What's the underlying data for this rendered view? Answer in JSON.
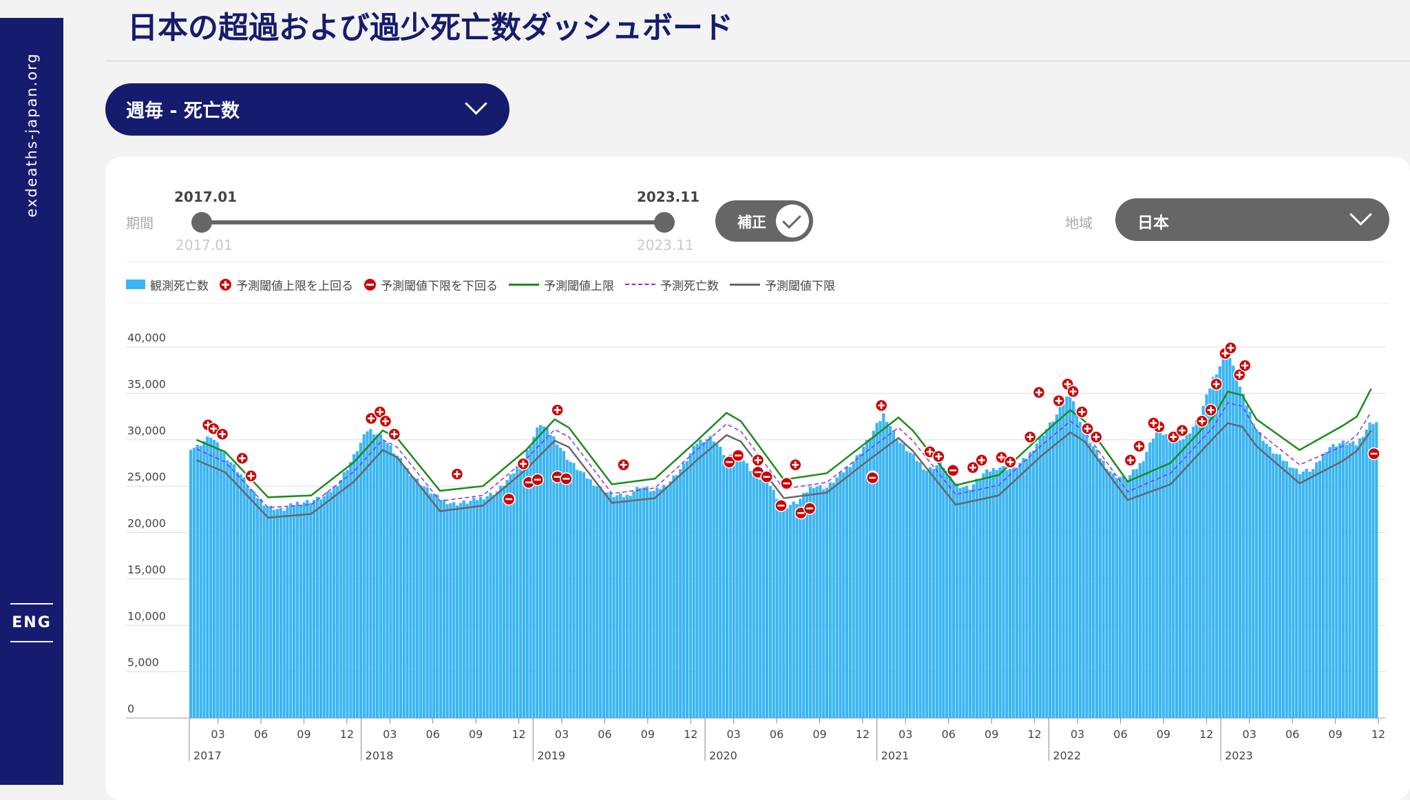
{
  "sidebar": {
    "site": "exdeaths-japan.org",
    "lang": "ENG"
  },
  "page": {
    "title": "日本の超過および過少死亡数ダッシュボード"
  },
  "controls": {
    "mode": "週毎 - 死亡数",
    "period_label": "期間",
    "range_start": "2017.01",
    "range_end": "2023.11",
    "range_start_min": "2017.01",
    "range_end_max": "2023.11",
    "correction_label": "補正",
    "correction_on": true,
    "region_label": "地域",
    "region": "日本"
  },
  "legend": {
    "observed": "観測死亡数",
    "above": "予測閾値上限を上回る",
    "below": "予測閾値下限を下回る",
    "upper": "予測閾値上限",
    "expected": "予測死亡数",
    "lower": "予測閾値下限"
  },
  "colors": {
    "bar": "#3ab5f3",
    "upper": "#1b8a1b",
    "expected": "#8a2be2",
    "lower": "#666666",
    "marker": "#cc0000",
    "navy": "#151c6e"
  },
  "chart_data": {
    "type": "bar",
    "title": "",
    "x_range": [
      "2017-01",
      "2023-11"
    ],
    "ylim": [
      0,
      40000
    ],
    "yticks": [
      {
        "v": 0,
        "label": "0"
      },
      {
        "v": 5000,
        "label": "5,000"
      },
      {
        "v": 10000,
        "label": "10,000"
      },
      {
        "v": 15000,
        "label": "15,000"
      },
      {
        "v": 20000,
        "label": "20,000"
      },
      {
        "v": 25000,
        "label": "25,000"
      },
      {
        "v": 30000,
        "label": "30,000"
      },
      {
        "v": 35000,
        "label": "35,000"
      },
      {
        "v": 40000,
        "label": "40,000"
      }
    ],
    "month_ticks": [
      "03",
      "06",
      "09",
      "12"
    ],
    "years": [
      "2017",
      "2018",
      "2019",
      "2020",
      "2021",
      "2022",
      "2023"
    ],
    "grid": true,
    "legend_position": "top-left",
    "series": [
      {
        "name": "予測閾値上限",
        "kind": "line",
        "points": [
          [
            "2017-01",
            30000
          ],
          [
            "2017-03",
            28700
          ],
          [
            "2017-06",
            23800
          ],
          [
            "2017-09",
            24000
          ],
          [
            "2017-12",
            27600
          ],
          [
            "2018-02",
            31000
          ],
          [
            "2018-03",
            30200
          ],
          [
            "2018-06",
            24500
          ],
          [
            "2018-09",
            25000
          ],
          [
            "2018-12",
            28900
          ],
          [
            "2019-02",
            32200
          ],
          [
            "2019-03",
            31300
          ],
          [
            "2019-06",
            25200
          ],
          [
            "2019-09",
            25800
          ],
          [
            "2019-12",
            30000
          ],
          [
            "2020-02",
            32900
          ],
          [
            "2020-03",
            32000
          ],
          [
            "2020-06",
            25700
          ],
          [
            "2020-09",
            26400
          ],
          [
            "2020-12",
            30000
          ],
          [
            "2021-02",
            32400
          ],
          [
            "2021-03",
            31000
          ],
          [
            "2021-06",
            25100
          ],
          [
            "2021-09",
            26200
          ],
          [
            "2021-12",
            30500
          ],
          [
            "2022-02",
            33200
          ],
          [
            "2022-03",
            32000
          ],
          [
            "2022-06",
            25500
          ],
          [
            "2022-09",
            27500
          ],
          [
            "2022-12",
            32500
          ],
          [
            "2023-01",
            35200
          ],
          [
            "2023-02",
            34800
          ],
          [
            "2023-03",
            32200
          ],
          [
            "2023-06",
            28900
          ],
          [
            "2023-09",
            31500
          ],
          [
            "2023-10",
            32500
          ],
          [
            "2023-11",
            35500
          ]
        ]
      },
      {
        "name": "予測死亡数",
        "kind": "line",
        "points": [
          [
            "2017-01",
            29000
          ],
          [
            "2017-03",
            27600
          ],
          [
            "2017-06",
            22700
          ],
          [
            "2017-09",
            23000
          ],
          [
            "2017-12",
            26600
          ],
          [
            "2018-02",
            30000
          ],
          [
            "2018-03",
            29200
          ],
          [
            "2018-06",
            23400
          ],
          [
            "2018-09",
            24000
          ],
          [
            "2018-12",
            27900
          ],
          [
            "2019-02",
            31100
          ],
          [
            "2019-03",
            30300
          ],
          [
            "2019-06",
            24200
          ],
          [
            "2019-09",
            24800
          ],
          [
            "2019-12",
            29000
          ],
          [
            "2020-02",
            31700
          ],
          [
            "2020-03",
            30900
          ],
          [
            "2020-06",
            24700
          ],
          [
            "2020-09",
            25400
          ],
          [
            "2020-12",
            29000
          ],
          [
            "2021-02",
            31300
          ],
          [
            "2021-03",
            29900
          ],
          [
            "2021-06",
            24100
          ],
          [
            "2021-09",
            25100
          ],
          [
            "2021-12",
            29400
          ],
          [
            "2022-02",
            32000
          ],
          [
            "2022-03",
            30900
          ],
          [
            "2022-06",
            24400
          ],
          [
            "2022-09",
            26400
          ],
          [
            "2022-12",
            31400
          ],
          [
            "2023-01",
            34000
          ],
          [
            "2023-02",
            33600
          ],
          [
            "2023-03",
            31000
          ],
          [
            "2023-06",
            27300
          ],
          [
            "2023-09",
            29300
          ],
          [
            "2023-10",
            30500
          ],
          [
            "2023-11",
            33000
          ]
        ]
      },
      {
        "name": "予測閾値下限",
        "kind": "line",
        "points": [
          [
            "2017-01",
            27800
          ],
          [
            "2017-03",
            26500
          ],
          [
            "2017-06",
            21600
          ],
          [
            "2017-09",
            22000
          ],
          [
            "2017-12",
            25500
          ],
          [
            "2018-02",
            28900
          ],
          [
            "2018-03",
            28100
          ],
          [
            "2018-06",
            22300
          ],
          [
            "2018-09",
            22900
          ],
          [
            "2018-12",
            26800
          ],
          [
            "2019-02",
            29900
          ],
          [
            "2019-03",
            29200
          ],
          [
            "2019-06",
            23200
          ],
          [
            "2019-09",
            23700
          ],
          [
            "2019-12",
            27900
          ],
          [
            "2020-02",
            30500
          ],
          [
            "2020-03",
            29800
          ],
          [
            "2020-06",
            23700
          ],
          [
            "2020-09",
            24300
          ],
          [
            "2020-12",
            27900
          ],
          [
            "2021-02",
            30200
          ],
          [
            "2021-03",
            28800
          ],
          [
            "2021-06",
            23000
          ],
          [
            "2021-09",
            24000
          ],
          [
            "2021-12",
            28300
          ],
          [
            "2022-02",
            30800
          ],
          [
            "2022-03",
            29800
          ],
          [
            "2022-06",
            23500
          ],
          [
            "2022-09",
            25200
          ],
          [
            "2022-12",
            30200
          ],
          [
            "2023-01",
            31800
          ],
          [
            "2023-02",
            31400
          ],
          [
            "2023-03",
            29300
          ],
          [
            "2023-06",
            25300
          ],
          [
            "2023-09",
            27700
          ],
          [
            "2023-10",
            28800
          ],
          [
            "2023-11",
            31000
          ]
        ]
      },
      {
        "name": "観測死亡数",
        "kind": "bar",
        "points": [
          [
            "2017-01",
            29200
          ],
          [
            "2017-02",
            30400
          ],
          [
            "2017-03",
            28400
          ],
          [
            "2017-04",
            26500
          ],
          [
            "2017-05",
            24200
          ],
          [
            "2017-06",
            22800
          ],
          [
            "2017-07",
            22400
          ],
          [
            "2017-08",
            23200
          ],
          [
            "2017-09",
            23400
          ],
          [
            "2017-10",
            23900
          ],
          [
            "2017-11",
            25500
          ],
          [
            "2017-12",
            28200
          ],
          [
            "2018-01",
            31200
          ],
          [
            "2018-02",
            30300
          ],
          [
            "2018-03",
            28300
          ],
          [
            "2018-04",
            26300
          ],
          [
            "2018-05",
            24800
          ],
          [
            "2018-06",
            23600
          ],
          [
            "2018-07",
            23100
          ],
          [
            "2018-08",
            23300
          ],
          [
            "2018-09",
            23800
          ],
          [
            "2018-10",
            24400
          ],
          [
            "2018-11",
            26100
          ],
          [
            "2018-12",
            28400
          ],
          [
            "2019-01",
            31800
          ],
          [
            "2019-02",
            30200
          ],
          [
            "2019-03",
            27800
          ],
          [
            "2019-04",
            26300
          ],
          [
            "2019-05",
            25000
          ],
          [
            "2019-06",
            24000
          ],
          [
            "2019-07",
            23900
          ],
          [
            "2019-08",
            25000
          ],
          [
            "2019-09",
            24400
          ],
          [
            "2019-10",
            25400
          ],
          [
            "2019-11",
            27200
          ],
          [
            "2019-12",
            29800
          ],
          [
            "2020-01",
            30300
          ],
          [
            "2020-02",
            28100
          ],
          [
            "2020-03",
            28200
          ],
          [
            "2020-04",
            26200
          ],
          [
            "2020-05",
            25300
          ],
          [
            "2020-06",
            22700
          ],
          [
            "2020-07",
            23300
          ],
          [
            "2020-08",
            25100
          ],
          [
            "2020-09",
            24800
          ],
          [
            "2020-10",
            26300
          ],
          [
            "2020-11",
            27900
          ],
          [
            "2020-12",
            30200
          ],
          [
            "2021-01",
            32800
          ],
          [
            "2021-02",
            29900
          ],
          [
            "2021-03",
            28300
          ],
          [
            "2021-04",
            26700
          ],
          [
            "2021-05",
            27500
          ],
          [
            "2021-06",
            25200
          ],
          [
            "2021-07",
            24800
          ],
          [
            "2021-08",
            26400
          ],
          [
            "2021-09",
            27100
          ],
          [
            "2021-10",
            26800
          ],
          [
            "2021-11",
            28100
          ],
          [
            "2021-12",
            30400
          ],
          [
            "2022-01",
            32500
          ],
          [
            "2022-02",
            35200
          ],
          [
            "2022-03",
            30800
          ],
          [
            "2022-04",
            28300
          ],
          [
            "2022-05",
            26200
          ],
          [
            "2022-06",
            25800
          ],
          [
            "2022-07",
            27600
          ],
          [
            "2022-08",
            31000
          ],
          [
            "2022-09",
            30400
          ],
          [
            "2022-10",
            30100
          ],
          [
            "2022-11",
            32300
          ],
          [
            "2022-12",
            36700
          ],
          [
            "2023-01",
            39500
          ],
          [
            "2023-02",
            35000
          ],
          [
            "2023-03",
            31200
          ],
          [
            "2023-04",
            28900
          ],
          [
            "2023-05",
            27700
          ],
          [
            "2023-06",
            26500
          ],
          [
            "2023-07",
            26800
          ],
          [
            "2023-08",
            29200
          ],
          [
            "2023-09",
            29700
          ],
          [
            "2023-10",
            29500
          ],
          [
            "2023-11",
            31900
          ]
        ]
      },
      {
        "name": "予測閾値上限を上回る",
        "kind": "marker",
        "points": [
          [
            "2017-02",
            31600
          ],
          [
            "2017-02",
            31200
          ],
          [
            "2017-03",
            30600
          ],
          [
            "2017-04",
            28000
          ],
          [
            "2017-05",
            26100
          ],
          [
            "2018-01",
            32300
          ],
          [
            "2018-02",
            33000
          ],
          [
            "2018-02",
            32000
          ],
          [
            "2018-03",
            30600
          ],
          [
            "2018-07",
            26300
          ],
          [
            "2018-12",
            27400
          ],
          [
            "2019-02",
            33200
          ],
          [
            "2019-07",
            27300
          ],
          [
            "2020-04",
            27800
          ],
          [
            "2020-07",
            27300
          ],
          [
            "2020-12",
            26000
          ],
          [
            "2021-01",
            33700
          ],
          [
            "2021-04",
            28700
          ],
          [
            "2021-05",
            28200
          ],
          [
            "2021-07",
            27000
          ],
          [
            "2021-08",
            27800
          ],
          [
            "2021-09",
            28100
          ],
          [
            "2021-10",
            27600
          ],
          [
            "2021-11",
            30300
          ],
          [
            "2021-12",
            35100
          ],
          [
            "2022-01",
            34200
          ],
          [
            "2022-02",
            36000
          ],
          [
            "2022-02",
            35200
          ],
          [
            "2022-03",
            33000
          ],
          [
            "2022-03",
            31200
          ],
          [
            "2022-04",
            30300
          ],
          [
            "2022-06",
            27800
          ],
          [
            "2022-07",
            29300
          ],
          [
            "2022-08",
            31400
          ],
          [
            "2022-08",
            31800
          ],
          [
            "2022-09",
            30300
          ],
          [
            "2022-10",
            31000
          ],
          [
            "2022-11",
            32000
          ],
          [
            "2022-12",
            33200
          ],
          [
            "2022-12",
            36000
          ],
          [
            "2023-01",
            39300
          ],
          [
            "2023-01",
            39900
          ],
          [
            "2023-02",
            37000
          ],
          [
            "2023-02",
            38000
          ]
        ]
      },
      {
        "name": "予測閾値下限を下回る",
        "kind": "marker",
        "points": [
          [
            "2018-11",
            23600
          ],
          [
            "2018-12",
            25400
          ],
          [
            "2019-01",
            25700
          ],
          [
            "2019-02",
            26000
          ],
          [
            "2019-03",
            25800
          ],
          [
            "2020-02",
            27600
          ],
          [
            "2020-03",
            28300
          ],
          [
            "2020-04",
            26500
          ],
          [
            "2020-05",
            26000
          ],
          [
            "2020-06",
            25300
          ],
          [
            "2020-06",
            22900
          ],
          [
            "2020-07",
            22100
          ],
          [
            "2020-08",
            22600
          ],
          [
            "2020-12",
            25900
          ],
          [
            "2021-06",
            26700
          ],
          [
            "2023-11",
            28500
          ]
        ]
      }
    ]
  }
}
